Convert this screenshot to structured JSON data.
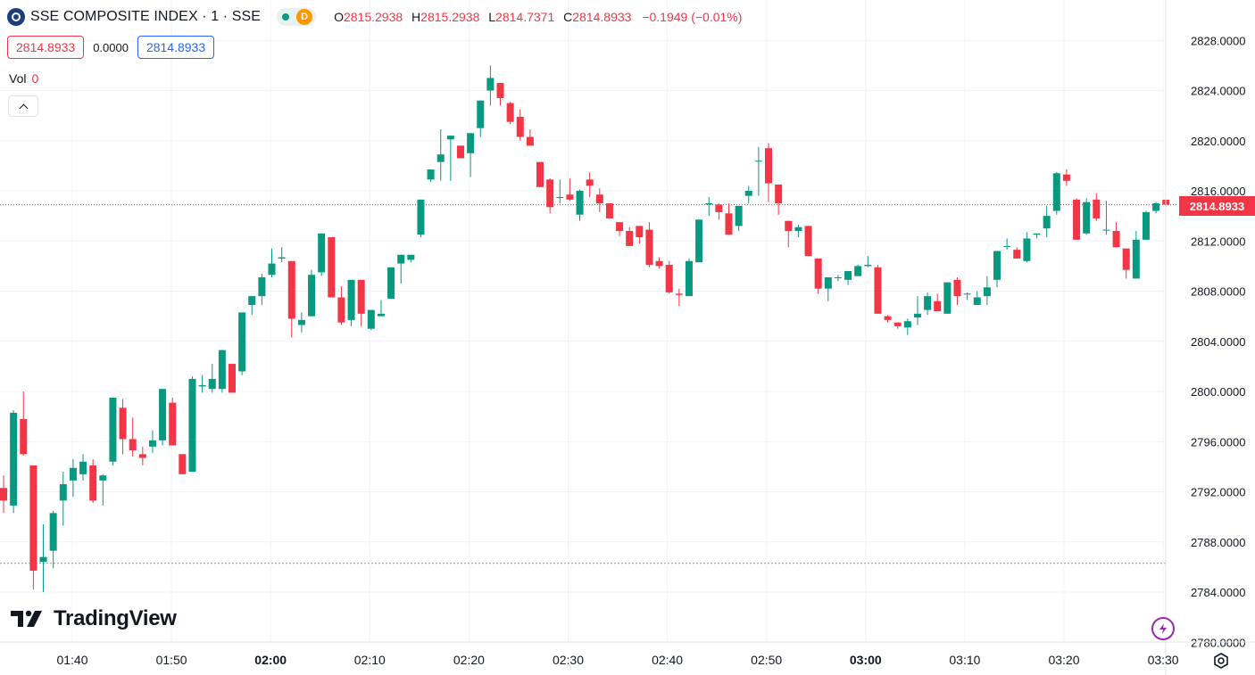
{
  "header": {
    "title": "SSE COMPOSITE INDEX · 1 · SSE",
    "delay_badge": "D",
    "ohlc": {
      "o_label": "O",
      "o": "2815.2938",
      "h_label": "H",
      "h": "2815.2938",
      "l_label": "L",
      "l": "2814.7371",
      "c_label": "C",
      "c": "2814.8933",
      "change": "−0.1949 (−0.01%)"
    }
  },
  "quote": {
    "bid": "2814.8933",
    "spread": "0.0000",
    "ask": "2814.8933"
  },
  "volume": {
    "label": "Vol",
    "value": "0"
  },
  "last_price_label": "2814.8933",
  "watermark": "TradingView",
  "colors": {
    "up": "#089981",
    "down": "#f23645",
    "grid": "#f0f3fa",
    "accent": "#2962ff"
  },
  "icons": {
    "collapse": "chevron-up-icon",
    "settings": "gear-icon",
    "lightning": "lightning-icon",
    "logo": "tradingview-logo-icon"
  },
  "chart_data": {
    "type": "candlestick",
    "y_ticks": [
      "2828.0000",
      "2824.0000",
      "2820.0000",
      "2816.0000",
      "2812.0000",
      "2808.0000",
      "2804.0000",
      "2800.0000",
      "2796.0000",
      "2792.0000",
      "2788.0000",
      "2784.0000",
      "2780.0000"
    ],
    "x_ticks": [
      {
        "label": "01:40",
        "bold": false
      },
      {
        "label": "01:50",
        "bold": false
      },
      {
        "label": "02:00",
        "bold": true
      },
      {
        "label": "02:10",
        "bold": false
      },
      {
        "label": "02:20",
        "bold": false
      },
      {
        "label": "02:30",
        "bold": false
      },
      {
        "label": "02:40",
        "bold": false
      },
      {
        "label": "02:50",
        "bold": false
      },
      {
        "label": "03:00",
        "bold": true
      },
      {
        "label": "03:10",
        "bold": false
      },
      {
        "label": "03:20",
        "bold": false
      },
      {
        "label": "03:30",
        "bold": false
      }
    ],
    "ylim": [
      2780,
      2829
    ],
    "last_price": 2814.8933,
    "reference_price": 2786.3,
    "candles": [
      [
        2792.3,
        2793.3,
        2790.3,
        2791.3
      ],
      [
        2790.9,
        2798.5,
        2790.3,
        2798.3
      ],
      [
        2797.8,
        2800.0,
        2794.9,
        2795.0
      ],
      [
        2794.1,
        2794.1,
        2784.2,
        2785.7
      ],
      [
        2786.4,
        2789.4,
        2784.0,
        2786.8
      ],
      [
        2787.3,
        2790.5,
        2785.9,
        2790.3
      ],
      [
        2791.3,
        2793.6,
        2789.3,
        2792.6
      ],
      [
        2792.9,
        2794.6,
        2791.6,
        2793.9
      ],
      [
        2793.4,
        2795.0,
        2792.9,
        2794.4
      ],
      [
        2794.1,
        2794.6,
        2791.1,
        2791.3
      ],
      [
        2792.9,
        2793.4,
        2790.9,
        2793.3
      ],
      [
        2794.4,
        2799.5,
        2794.1,
        2799.5
      ],
      [
        2798.7,
        2799.4,
        2795.0,
        2796.2
      ],
      [
        2796.2,
        2797.9,
        2794.8,
        2795.3
      ],
      [
        2795.0,
        2795.6,
        2794.1,
        2794.7
      ],
      [
        2795.6,
        2796.9,
        2795.1,
        2796.1
      ],
      [
        2796.1,
        2800.2,
        2795.7,
        2800.2
      ],
      [
        2799.1,
        2799.5,
        2795.7,
        2795.7
      ],
      [
        2795.0,
        2795.0,
        2793.4,
        2793.4
      ],
      [
        2793.6,
        2801.2,
        2793.6,
        2801.0
      ],
      [
        2800.4,
        2801.3,
        2799.9,
        2800.5
      ],
      [
        2800.2,
        2802.2,
        2799.9,
        2801.0
      ],
      [
        2800.2,
        2803.3,
        2799.9,
        2803.3
      ],
      [
        2802.2,
        2802.2,
        2799.9,
        2799.9
      ],
      [
        2801.6,
        2806.3,
        2801.3,
        2806.3
      ],
      [
        2806.9,
        2807.6,
        2806.1,
        2807.6
      ],
      [
        2807.6,
        2809.4,
        2806.9,
        2809.1
      ],
      [
        2809.3,
        2811.4,
        2809.1,
        2810.2
      ],
      [
        2810.6,
        2811.5,
        2810.3,
        2810.7
      ],
      [
        2810.4,
        2810.4,
        2804.3,
        2805.8
      ],
      [
        2805.3,
        2806.3,
        2804.7,
        2805.7
      ],
      [
        2806.0,
        2809.7,
        2806.0,
        2809.3
      ],
      [
        2809.5,
        2812.6,
        2809.2,
        2812.6
      ],
      [
        2812.3,
        2812.3,
        2807.5,
        2807.5
      ],
      [
        2807.5,
        2808.4,
        2805.3,
        2805.5
      ],
      [
        2805.7,
        2808.9,
        2805.2,
        2808.9
      ],
      [
        2808.9,
        2808.9,
        2805.2,
        2806.2
      ],
      [
        2805.0,
        2806.5,
        2804.9,
        2806.5
      ],
      [
        2806.0,
        2807.3,
        2806.0,
        2806.2
      ],
      [
        2807.4,
        2809.9,
        2807.4,
        2809.9
      ],
      [
        2810.2,
        2810.9,
        2808.6,
        2810.9
      ],
      [
        2810.5,
        2810.9,
        2810.3,
        2810.9
      ],
      [
        2812.5,
        2815.3,
        2812.3,
        2815.3
      ],
      [
        2816.9,
        2817.7,
        2816.7,
        2817.7
      ],
      [
        2818.3,
        2820.9,
        2816.8,
        2818.9
      ],
      [
        2820.1,
        2820.4,
        2816.8,
        2820.4
      ],
      [
        2819.6,
        2819.6,
        2818.6,
        2818.6
      ],
      [
        2819.0,
        2820.6,
        2817.1,
        2820.6
      ],
      [
        2821.0,
        2823.2,
        2820.3,
        2823.2
      ],
      [
        2824.0,
        2826.0,
        2822.8,
        2825.0
      ],
      [
        2824.6,
        2824.6,
        2822.8,
        2823.4
      ],
      [
        2823.0,
        2823.1,
        2821.3,
        2821.5
      ],
      [
        2821.9,
        2822.5,
        2820.0,
        2820.3
      ],
      [
        2820.3,
        2820.9,
        2819.6,
        2819.6
      ],
      [
        2818.3,
        2818.3,
        2816.3,
        2816.3
      ],
      [
        2816.9,
        2817.0,
        2814.2,
        2814.7
      ],
      [
        2815.5,
        2816.9,
        2815.0,
        2815.5
      ],
      [
        2815.7,
        2817.0,
        2815.2,
        2815.3
      ],
      [
        2814.1,
        2816.1,
        2813.6,
        2816.0
      ],
      [
        2816.9,
        2817.5,
        2815.5,
        2816.4
      ],
      [
        2815.7,
        2816.2,
        2814.3,
        2815.0
      ],
      [
        2815.0,
        2815.0,
        2813.8,
        2813.8
      ],
      [
        2813.5,
        2813.5,
        2812.4,
        2812.8
      ],
      [
        2812.8,
        2813.1,
        2811.6,
        2811.6
      ],
      [
        2813.2,
        2813.2,
        2811.8,
        2812.3
      ],
      [
        2812.9,
        2813.5,
        2809.9,
        2810.1
      ],
      [
        2810.4,
        2810.7,
        2809.8,
        2810.0
      ],
      [
        2810.1,
        2810.4,
        2807.8,
        2807.9
      ],
      [
        2807.8,
        2808.2,
        2806.8,
        2807.7
      ],
      [
        2807.6,
        2810.6,
        2807.6,
        2810.4
      ],
      [
        2810.3,
        2813.7,
        2810.3,
        2813.7
      ],
      [
        2814.9,
        2815.5,
        2814.0,
        2815.0
      ],
      [
        2814.9,
        2815.0,
        2813.7,
        2814.3
      ],
      [
        2814.2,
        2815.0,
        2812.5,
        2812.5
      ],
      [
        2813.2,
        2814.8,
        2812.8,
        2814.8
      ],
      [
        2815.6,
        2816.4,
        2815.0,
        2816.0
      ],
      [
        2818.4,
        2819.5,
        2815.6,
        2818.4
      ],
      [
        2819.4,
        2819.8,
        2815.1,
        2816.6
      ],
      [
        2816.5,
        2816.5,
        2814.1,
        2815.0
      ],
      [
        2813.6,
        2813.6,
        2811.5,
        2812.8
      ],
      [
        2812.8,
        2813.3,
        2812.3,
        2813.1
      ],
      [
        2813.2,
        2813.2,
        2810.8,
        2810.8
      ],
      [
        2810.6,
        2810.6,
        2807.8,
        2808.2
      ],
      [
        2808.2,
        2809.1,
        2807.2,
        2809.1
      ],
      [
        2809.1,
        2809.3,
        2808.8,
        2809.1
      ],
      [
        2808.9,
        2809.5,
        2808.5,
        2809.6
      ],
      [
        2809.2,
        2810.1,
        2809.2,
        2810.0
      ],
      [
        2810.0,
        2810.8,
        2809.9,
        2810.1
      ],
      [
        2809.9,
        2810.1,
        2806.2,
        2806.2
      ],
      [
        2806.0,
        2806.1,
        2805.5,
        2805.7
      ],
      [
        2805.5,
        2805.5,
        2805.0,
        2805.2
      ],
      [
        2805.1,
        2805.8,
        2804.5,
        2805.6
      ],
      [
        2805.9,
        2807.6,
        2805.3,
        2806.2
      ],
      [
        2806.5,
        2807.9,
        2806.1,
        2807.6
      ],
      [
        2807.2,
        2807.8,
        2806.4,
        2806.4
      ],
      [
        2806.2,
        2808.7,
        2806.2,
        2808.7
      ],
      [
        2808.9,
        2809.1,
        2806.9,
        2807.6
      ],
      [
        2807.8,
        2807.9,
        2807.3,
        2807.8
      ],
      [
        2806.9,
        2808.0,
        2806.9,
        2807.5
      ],
      [
        2807.6,
        2809.2,
        2806.9,
        2808.3
      ],
      [
        2808.9,
        2811.2,
        2808.3,
        2811.2
      ],
      [
        2811.6,
        2812.2,
        2811.3,
        2811.6
      ],
      [
        2811.3,
        2811.5,
        2810.6,
        2810.6
      ],
      [
        2810.4,
        2812.7,
        2810.3,
        2812.2
      ],
      [
        2812.5,
        2812.6,
        2812.2,
        2812.6
      ],
      [
        2813.0,
        2814.8,
        2812.3,
        2814.0
      ],
      [
        2814.4,
        2817.5,
        2814.1,
        2817.4
      ],
      [
        2817.3,
        2817.7,
        2816.4,
        2816.8
      ],
      [
        2815.3,
        2815.4,
        2812.1,
        2812.1
      ],
      [
        2812.6,
        2815.4,
        2812.5,
        2815.1
      ],
      [
        2815.3,
        2815.8,
        2813.6,
        2813.8
      ],
      [
        2812.9,
        2815.2,
        2812.5,
        2812.9
      ],
      [
        2812.8,
        2813.5,
        2811.5,
        2811.5
      ],
      [
        2811.4,
        2811.4,
        2809.0,
        2809.7
      ],
      [
        2809.0,
        2812.8,
        2809.0,
        2812.1
      ],
      [
        2812.1,
        2814.4,
        2812.1,
        2814.3
      ],
      [
        2814.4,
        2815.1,
        2814.2,
        2815.0
      ],
      [
        2815.29,
        2815.29,
        2814.74,
        2814.89
      ]
    ]
  }
}
